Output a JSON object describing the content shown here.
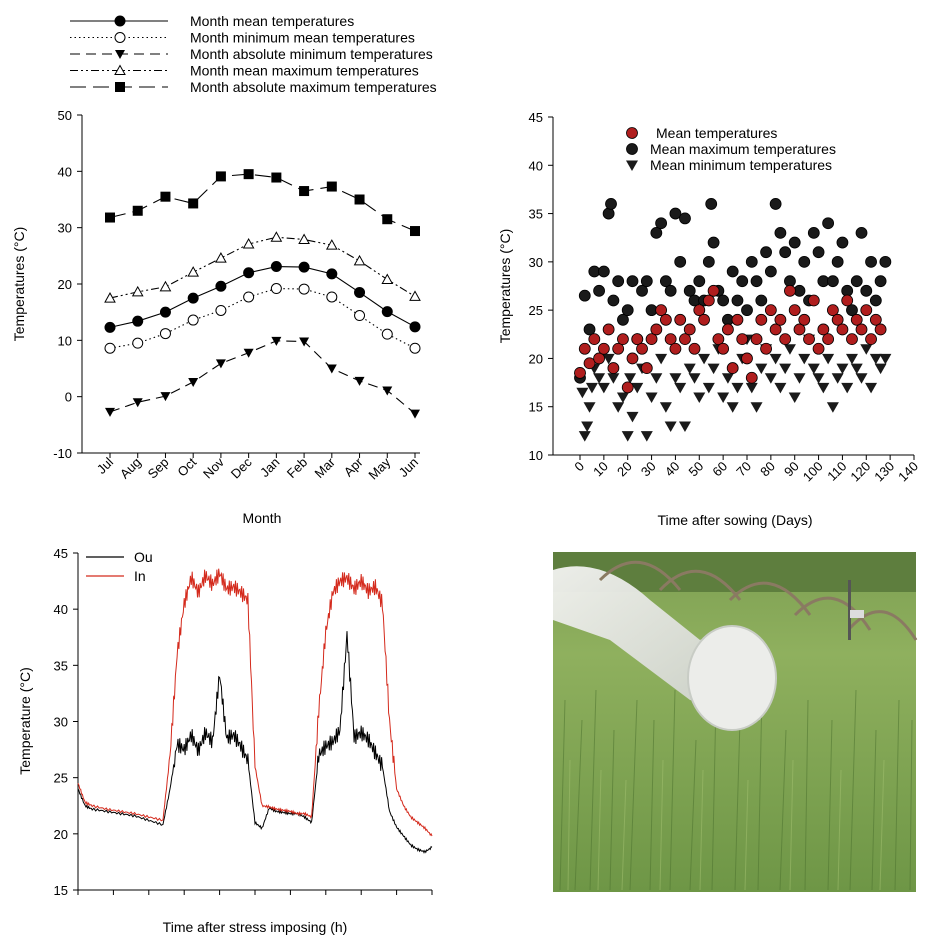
{
  "chart_data": [
    {
      "type": "line",
      "xlabel": "Month",
      "ylabel": "Temperatures (°C)",
      "ylim": [
        -10,
        50
      ],
      "yticks": [
        -10,
        0,
        10,
        20,
        30,
        40,
        50
      ],
      "categories": [
        "Jul",
        "Aug",
        "Sep",
        "Oct",
        "Nov",
        "Dec",
        "Jan",
        "Feb",
        "Mar",
        "Apr",
        "May",
        "Jun"
      ],
      "legend_position": "top",
      "series": [
        {
          "name": "Month mean temperatures",
          "marker": "filled-circle",
          "line": "solid",
          "values": [
            12.3,
            13.4,
            15.0,
            17.5,
            19.6,
            22.0,
            23.1,
            23.0,
            21.8,
            18.5,
            15.1,
            12.4
          ]
        },
        {
          "name": "Month minimum mean temperatures",
          "marker": "open-circle",
          "line": "dotted",
          "values": [
            8.6,
            9.5,
            11.2,
            13.6,
            15.3,
            17.7,
            19.2,
            19.1,
            17.7,
            14.4,
            11.1,
            8.6
          ]
        },
        {
          "name": "Month absolute minimum temperatures",
          "marker": "filled-triangle-down",
          "line": "dashed",
          "values": [
            -2.7,
            -1.0,
            0.1,
            2.6,
            5.9,
            7.8,
            9.9,
            9.8,
            5.0,
            2.8,
            1.1,
            -3.0
          ]
        },
        {
          "name": "Month mean maximum temperatures",
          "marker": "open-triangle-up",
          "line": "dash-dot-dot",
          "values": [
            17.5,
            18.6,
            19.5,
            22.1,
            24.6,
            27.1,
            28.3,
            27.9,
            26.9,
            24.1,
            20.8,
            17.8
          ]
        },
        {
          "name": "Month absolute maximum temperatures",
          "marker": "filled-square",
          "line": "long-dash",
          "values": [
            31.8,
            33.0,
            35.5,
            34.3,
            39.1,
            39.5,
            38.9,
            36.5,
            37.3,
            35.0,
            31.5,
            29.4
          ]
        }
      ]
    },
    {
      "type": "scatter",
      "xlabel": "Time after sowing (Days)",
      "ylabel": "Temperatures (°C)",
      "xlim": [
        0,
        140
      ],
      "ylim": [
        10,
        45
      ],
      "xticks": [
        0,
        10,
        20,
        30,
        40,
        50,
        60,
        70,
        80,
        90,
        100,
        110,
        120,
        130,
        140
      ],
      "yticks": [
        10,
        15,
        20,
        25,
        30,
        35,
        40,
        45
      ],
      "legend_position": "top-left",
      "series": [
        {
          "name": "Mean temperatures",
          "marker": "circle",
          "color": "#b01e1e",
          "x": [
            0,
            2,
            4,
            6,
            8,
            10,
            12,
            14,
            16,
            18,
            20,
            22,
            24,
            26,
            28,
            30,
            32,
            34,
            36,
            38,
            40,
            42,
            44,
            46,
            48,
            50,
            52,
            54,
            56,
            58,
            60,
            62,
            64,
            66,
            68,
            70,
            72,
            74,
            76,
            78,
            80,
            82,
            84,
            86,
            88,
            90,
            92,
            94,
            96,
            98,
            100,
            102,
            104,
            106,
            108,
            110,
            112,
            114,
            116,
            118,
            120,
            122,
            124,
            126
          ],
          "y": [
            18.5,
            21,
            19.5,
            22,
            20,
            21,
            23,
            19,
            21,
            22,
            17,
            20,
            22,
            21,
            19,
            22,
            23,
            25,
            24,
            22,
            21,
            24,
            22,
            23,
            21,
            25,
            24,
            26,
            27,
            22,
            21,
            23,
            19,
            24,
            22,
            20,
            18,
            22,
            24,
            21,
            25,
            23,
            24,
            22,
            27,
            25,
            23,
            24,
            22,
            26,
            21,
            23,
            22,
            25,
            24,
            23,
            26,
            22,
            24,
            23,
            25,
            22,
            24,
            23
          ]
        },
        {
          "name": "Mean maximum temperatures",
          "marker": "circle",
          "color": "#1a1a1a",
          "x": [
            0,
            2,
            4,
            6,
            8,
            10,
            12,
            13,
            14,
            16,
            18,
            20,
            22,
            24,
            26,
            28,
            30,
            32,
            34,
            36,
            38,
            40,
            42,
            44,
            46,
            48,
            50,
            52,
            54,
            55,
            56,
            58,
            60,
            62,
            64,
            66,
            68,
            70,
            72,
            74,
            76,
            78,
            80,
            82,
            84,
            86,
            88,
            90,
            92,
            94,
            96,
            98,
            100,
            102,
            104,
            106,
            108,
            110,
            112,
            114,
            116,
            118,
            120,
            122,
            124,
            126,
            128
          ],
          "y": [
            18,
            26.5,
            23,
            29,
            27,
            29,
            35,
            36,
            26,
            28,
            24,
            25,
            28,
            22,
            27,
            28,
            25,
            33,
            34,
            28,
            27,
            35,
            30,
            34.5,
            27,
            26,
            28,
            26,
            30,
            36,
            32,
            27,
            26,
            24,
            29,
            26,
            28,
            25,
            30,
            28,
            26,
            31,
            29,
            36,
            33,
            31,
            28,
            32,
            27,
            30,
            26,
            33,
            31,
            28,
            34,
            28,
            30,
            32,
            27,
            25,
            28,
            33,
            27,
            30,
            26,
            28,
            30
          ]
        },
        {
          "name": "Mean minimum temperatures",
          "marker": "triangle-down",
          "color": "#1a1a1a",
          "x": [
            0,
            1,
            2,
            3,
            4,
            5,
            6,
            8,
            10,
            12,
            14,
            16,
            18,
            20,
            21,
            22,
            24,
            26,
            28,
            30,
            32,
            34,
            36,
            38,
            40,
            42,
            44,
            46,
            48,
            50,
            52,
            54,
            56,
            58,
            60,
            62,
            64,
            66,
            68,
            70,
            72,
            74,
            76,
            78,
            80,
            82,
            84,
            86,
            88,
            90,
            92,
            94,
            96,
            98,
            100,
            102,
            104,
            106,
            108,
            110,
            112,
            114,
            116,
            118,
            120,
            122,
            124,
            126,
            128
          ],
          "y": [
            18,
            16.5,
            12,
            13,
            15,
            17,
            19,
            18,
            17,
            20,
            18,
            15,
            16,
            12,
            18,
            14,
            17,
            19,
            12,
            16,
            18,
            20,
            15,
            13,
            18,
            17,
            13,
            19,
            18,
            16,
            20,
            17,
            19,
            21,
            16,
            18,
            15,
            17,
            20,
            22,
            17,
            15,
            19,
            21,
            18,
            20,
            17,
            19,
            21,
            16,
            18,
            20,
            22,
            19,
            18,
            17,
            20,
            15,
            18,
            19,
            17,
            20,
            19,
            18,
            21,
            17,
            20,
            19,
            20
          ]
        }
      ]
    },
    {
      "type": "line",
      "xlabel": "Time after stress imposing (h)",
      "ylabel": "Temperature (°C)",
      "ylim": [
        15,
        45
      ],
      "yticks": [
        15,
        20,
        25,
        30,
        35,
        40,
        45
      ],
      "xlim": [
        0,
        100
      ],
      "legend_position": "top-left",
      "series": [
        {
          "name": "Ou",
          "color": "#000000",
          "x": [
            0,
            2,
            4,
            8,
            12,
            16,
            20,
            24,
            26,
            28,
            30,
            32,
            34,
            36,
            38,
            40,
            42,
            44,
            46,
            48,
            50,
            52,
            54,
            56,
            58,
            60,
            62,
            64,
            66,
            68,
            70,
            72,
            74,
            76,
            78,
            80,
            82,
            84,
            86,
            88,
            90,
            92,
            94,
            96,
            98,
            100
          ],
          "y": [
            24,
            22.5,
            22.2,
            22,
            21.8,
            21.6,
            21.2,
            20.8,
            24,
            28,
            27.5,
            28.8,
            27.4,
            29,
            28.2,
            34.2,
            28.5,
            28.8,
            27.8,
            26.5,
            21,
            20.5,
            22.3,
            22,
            21.9,
            21.8,
            21.8,
            21.5,
            21,
            27,
            27.8,
            28.2,
            29.2,
            37.8,
            28.6,
            29,
            28.4,
            27.2,
            26,
            22,
            20.6,
            19.8,
            19,
            18.6,
            18.4,
            18.8
          ]
        },
        {
          "name": "In",
          "color": "#d42a1c",
          "x": [
            0,
            2,
            4,
            8,
            12,
            16,
            20,
            24,
            26,
            28,
            30,
            32,
            34,
            36,
            38,
            40,
            42,
            44,
            46,
            48,
            50,
            52,
            54,
            56,
            58,
            60,
            62,
            64,
            66,
            68,
            70,
            72,
            74,
            76,
            78,
            80,
            82,
            84,
            86,
            88,
            90,
            92,
            94,
            96,
            98,
            100
          ],
          "y": [
            24.5,
            22.8,
            22.5,
            22.2,
            22,
            21.8,
            21.5,
            21.2,
            27,
            36,
            40.5,
            42.8,
            41.5,
            43,
            42.2,
            43.2,
            41.8,
            42,
            41.5,
            40.8,
            26,
            22.5,
            22.4,
            22.2,
            22.1,
            22,
            21.8,
            21.8,
            21.5,
            31,
            38,
            41.5,
            42.5,
            42.8,
            41.8,
            42.5,
            41.6,
            42,
            40.5,
            30,
            24,
            22.5,
            21.5,
            21,
            20.5,
            19.8
          ]
        }
      ]
    }
  ]
}
